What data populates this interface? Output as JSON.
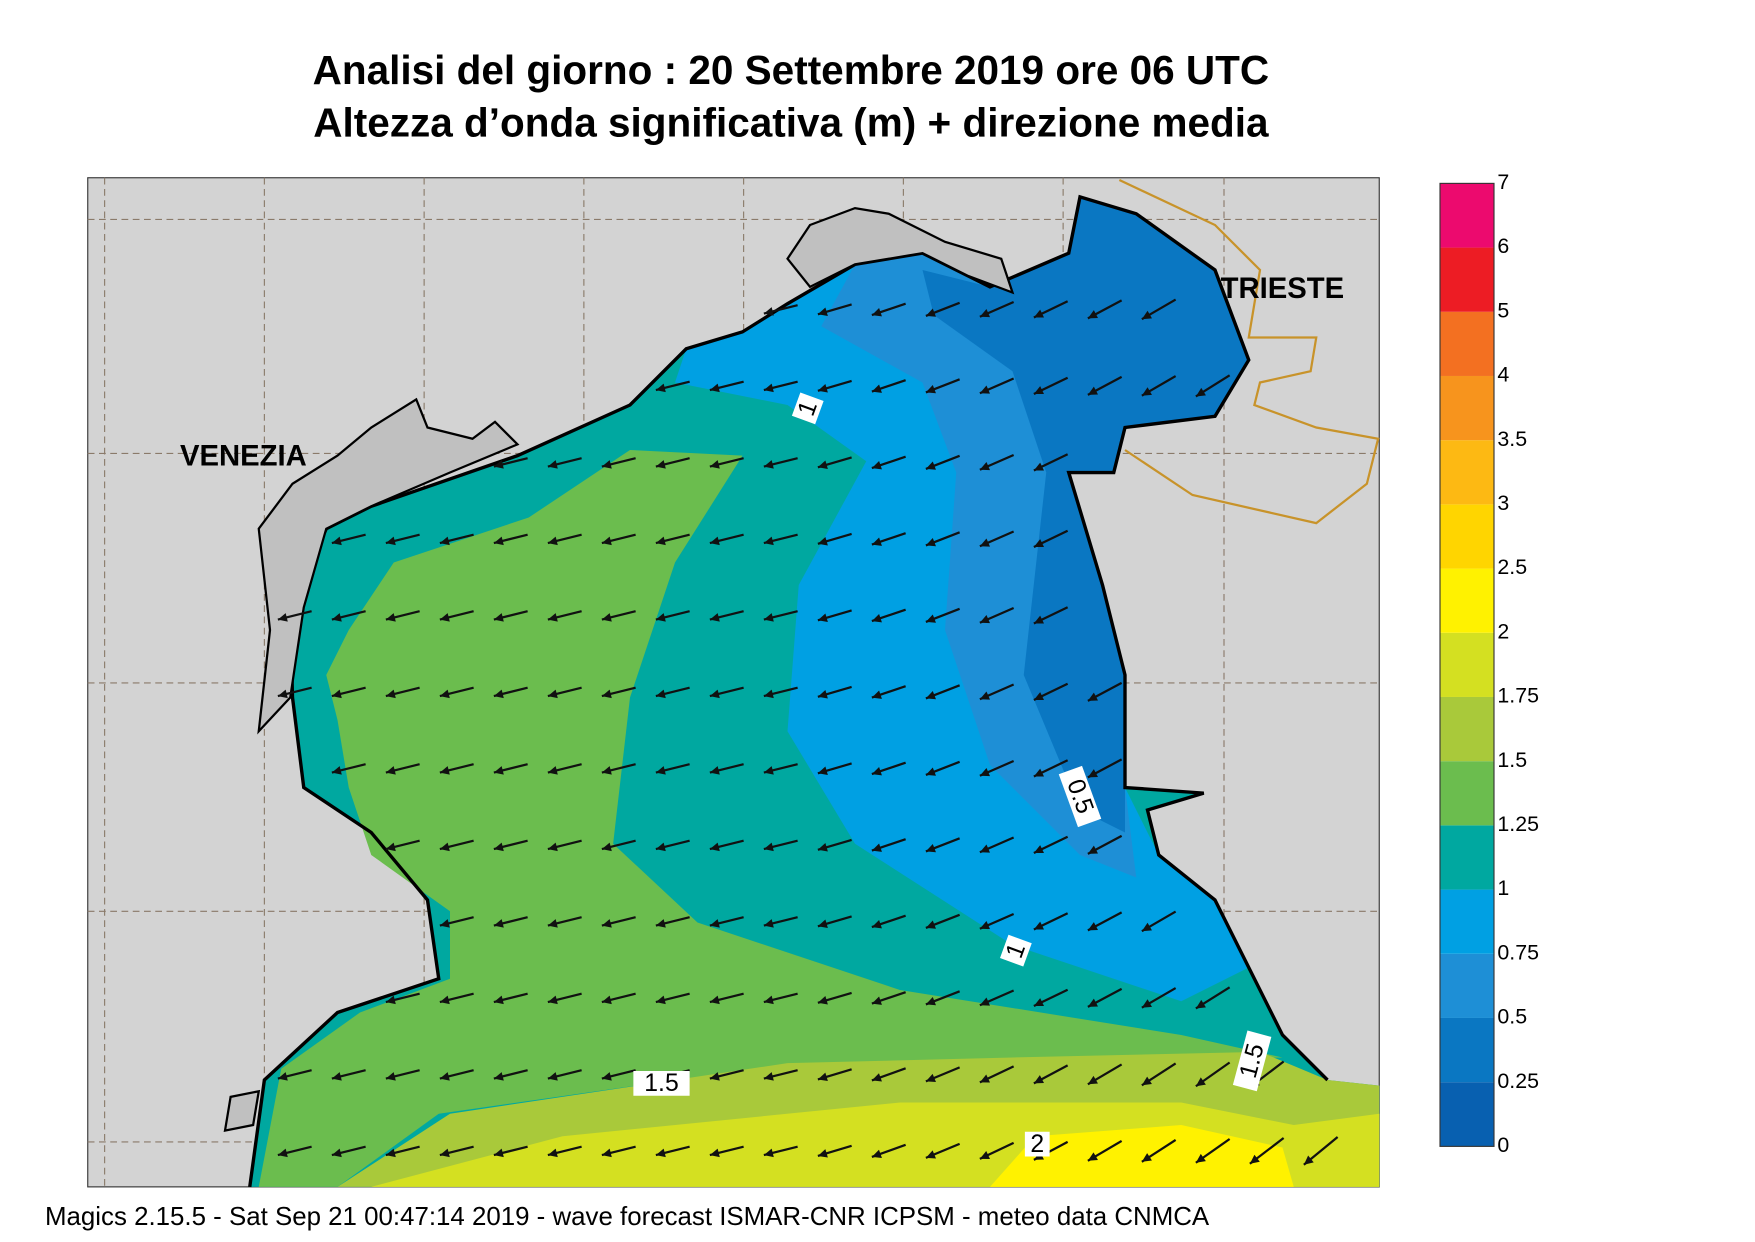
{
  "header": {
    "title": "Analisi del giorno :  20 Settembre 2019   ore 06 UTC",
    "subtitle": "Altezza d’onda significativa (m) + direzione media"
  },
  "map": {
    "cities": [
      "VENEZIA",
      "TRIESTE"
    ],
    "contour_labels": [
      "1",
      "0.5",
      "1",
      "1.5",
      "1.5",
      "2"
    ]
  },
  "legend": {
    "levels": [
      0,
      0.25,
      0.5,
      0.75,
      1,
      1.25,
      1.5,
      1.75,
      2,
      2.5,
      3,
      3.5,
      4,
      5,
      6,
      7
    ],
    "colors": [
      "#0860b0",
      "#0a77c2",
      "#1e8fd6",
      "#00a0e3",
      "#00a8a0",
      "#6bbd4e",
      "#a9c93a",
      "#d4e021",
      "#fff200",
      "#ffd500",
      "#fdb913",
      "#f7941d",
      "#f37021",
      "#ed1c24",
      "#ec0a6e"
    ]
  },
  "footer": "Magics 2.15.5 - Sat Sep 21 00:47:14 2019 - wave forecast  ISMAR-CNR  ICPSM - meteo data   CNMCA"
}
